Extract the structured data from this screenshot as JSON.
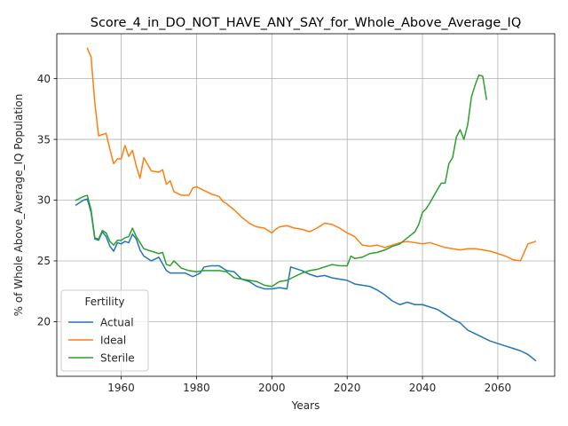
{
  "chart_data": {
    "type": "line",
    "title": "Score_4_in_DO_NOT_HAVE_ANY_SAY_for_Whole_Above_Average_IQ",
    "xlabel": "Years",
    "ylabel": "% of Whole Above_Average_IQ Population",
    "xlim": [
      1942.9,
      2075.1
    ],
    "ylim": [
      15.5,
      43.7
    ],
    "xticks": [
      1960,
      1980,
      2000,
      2020,
      2040,
      2060
    ],
    "yticks": [
      20,
      25,
      30,
      35,
      40
    ],
    "grid": true,
    "legend": {
      "title": "Fertility",
      "position": "lower-left"
    },
    "series": [
      {
        "name": "Actual",
        "color": "#1f77b4",
        "x": [
          1948,
          1950,
          1951,
          1952,
          1953,
          1954,
          1955,
          1956,
          1957,
          1958,
          1959,
          1960,
          1961,
          1962,
          1963,
          1964,
          1965,
          1966,
          1968,
          1970,
          1972,
          1973,
          1975,
          1977,
          1979,
          1981,
          1982,
          1984,
          1986,
          1988,
          1990,
          1992,
          1994,
          1996,
          1998,
          2000,
          2002,
          2004,
          2005,
          2006,
          2008,
          2010,
          2012,
          2014,
          2016,
          2018,
          2020,
          2022,
          2024,
          2026,
          2028,
          2030,
          2032,
          2034,
          2036,
          2038,
          2040,
          2042,
          2044,
          2046,
          2048,
          2050,
          2052,
          2054,
          2056,
          2058,
          2060,
          2062,
          2064,
          2066,
          2068,
          2070
        ],
        "values": [
          29.6,
          30.0,
          30.1,
          29.0,
          26.8,
          26.7,
          27.4,
          27.0,
          26.2,
          25.8,
          26.5,
          26.4,
          26.6,
          26.5,
          27.2,
          26.8,
          25.9,
          25.4,
          25.0,
          25.3,
          24.2,
          24.0,
          24.0,
          24.0,
          23.7,
          24.0,
          24.5,
          24.6,
          24.6,
          24.2,
          24.1,
          23.5,
          23.3,
          22.9,
          22.7,
          22.7,
          22.8,
          22.7,
          24.5,
          24.4,
          24.2,
          23.9,
          23.7,
          23.8,
          23.6,
          23.5,
          23.4,
          23.1,
          23.0,
          22.9,
          22.6,
          22.2,
          21.7,
          21.4,
          21.6,
          21.4,
          21.4,
          21.2,
          21.0,
          20.6,
          20.2,
          19.9,
          19.3,
          19.0,
          18.7,
          18.4,
          18.2,
          18.0,
          17.8,
          17.6,
          17.3,
          16.8
        ]
      },
      {
        "name": "Ideal",
        "color": "#ff7f0e",
        "x": [
          1951,
          1952,
          1953,
          1954,
          1955,
          1956,
          1957,
          1958,
          1959,
          1960,
          1961,
          1962,
          1963,
          1964,
          1965,
          1966,
          1968,
          1970,
          1971,
          1972,
          1973,
          1974,
          1976,
          1978,
          1979,
          1980,
          1982,
          1984,
          1986,
          1987,
          1988,
          1990,
          1992,
          1994,
          1996,
          1998,
          2000,
          2001,
          2002,
          2004,
          2006,
          2008,
          2010,
          2012,
          2014,
          2016,
          2018,
          2020,
          2022,
          2024,
          2026,
          2028,
          2030,
          2032,
          2034,
          2036,
          2038,
          2040,
          2042,
          2044,
          2046,
          2048,
          2050,
          2052,
          2054,
          2056,
          2058,
          2060,
          2062,
          2064,
          2066,
          2068,
          2070
        ],
        "values": [
          42.5,
          41.8,
          38.0,
          35.3,
          35.4,
          35.5,
          34.2,
          33.0,
          33.4,
          33.4,
          34.5,
          33.6,
          34.1,
          32.8,
          31.8,
          33.5,
          32.4,
          32.3,
          32.5,
          31.3,
          31.6,
          30.7,
          30.4,
          30.4,
          31.0,
          31.1,
          30.8,
          30.5,
          30.3,
          29.9,
          29.7,
          29.2,
          28.6,
          28.1,
          27.8,
          27.7,
          27.3,
          27.6,
          27.8,
          27.9,
          27.7,
          27.6,
          27.4,
          27.7,
          28.1,
          28.0,
          27.7,
          27.3,
          27.0,
          26.3,
          26.2,
          26.3,
          26.1,
          26.3,
          26.5,
          26.6,
          26.5,
          26.4,
          26.5,
          26.3,
          26.1,
          26.0,
          25.9,
          26.0,
          26.0,
          25.9,
          25.8,
          25.6,
          25.4,
          25.1,
          25.0,
          26.4,
          26.6
        ]
      },
      {
        "name": "Sterile",
        "color": "#2ca02c",
        "x": [
          1948,
          1950,
          1951,
          1952,
          1953,
          1954,
          1955,
          1956,
          1957,
          1958,
          1959,
          1960,
          1961,
          1962,
          1963,
          1964,
          1965,
          1966,
          1968,
          1970,
          1971,
          1972,
          1973,
          1974,
          1976,
          1978,
          1980,
          1982,
          1984,
          1986,
          1988,
          1990,
          1992,
          1994,
          1996,
          1998,
          2000,
          2002,
          2004,
          2006,
          2008,
          2010,
          2012,
          2014,
          2016,
          2018,
          2020,
          2021,
          2022,
          2024,
          2026,
          2028,
          2030,
          2032,
          2034,
          2036,
          2038,
          2039,
          2040,
          2041,
          2042,
          2044,
          2045,
          2046,
          2047,
          2048,
          2049,
          2050,
          2051,
          2052,
          2053,
          2054,
          2055,
          2056,
          2057
        ],
        "values": [
          30.0,
          30.3,
          30.4,
          29.2,
          26.9,
          26.8,
          27.5,
          27.3,
          26.6,
          26.3,
          26.7,
          26.7,
          26.9,
          27.0,
          27.7,
          27.0,
          26.5,
          26.0,
          25.8,
          25.6,
          25.7,
          24.7,
          24.6,
          25.0,
          24.4,
          24.2,
          24.1,
          24.2,
          24.2,
          24.2,
          24.1,
          23.6,
          23.5,
          23.4,
          23.3,
          23.0,
          22.9,
          23.3,
          23.4,
          23.7,
          24.0,
          24.2,
          24.3,
          24.5,
          24.7,
          24.6,
          24.6,
          25.4,
          25.2,
          25.3,
          25.6,
          25.7,
          25.9,
          26.2,
          26.4,
          26.9,
          27.4,
          28.0,
          29.0,
          29.3,
          29.8,
          30.9,
          31.4,
          31.4,
          33.0,
          33.5,
          35.2,
          35.8,
          35.0,
          36.2,
          38.5,
          39.5,
          40.3,
          40.2,
          38.3
        ]
      }
    ]
  }
}
